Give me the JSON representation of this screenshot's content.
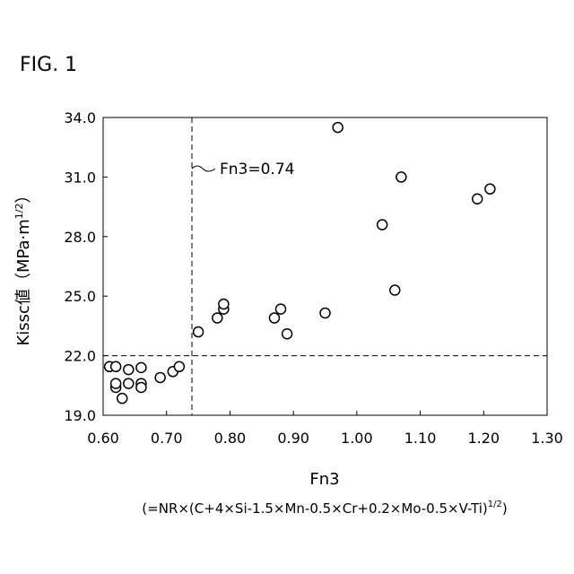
{
  "figure_label": "FIG. 1",
  "chart_data": {
    "type": "scatter",
    "xlabel": "Fn3",
    "xlabel_sub_main": "(=NR×(C+4×Si-1.5×Mn-0.5×Cr+0.2×Mo-0.5×V-Ti)",
    "xlabel_sub_sup": "1/2",
    "xlabel_sub_close": ")",
    "ylabel_main": "Kissc値（MPa·m",
    "ylabel_sup": "1/2",
    "ylabel_close": "）",
    "xlim": [
      0.6,
      1.3
    ],
    "ylim": [
      19.0,
      34.0
    ],
    "x_ticks": [
      "0.60",
      "0.70",
      "0.80",
      "0.90",
      "1.00",
      "1.10",
      "1.20",
      "1.30"
    ],
    "y_ticks": [
      "19.0",
      "22.0",
      "25.0",
      "28.0",
      "31.0",
      "34.0"
    ],
    "annotation": "Fn3=0.74",
    "reference_lines": {
      "x": 0.74,
      "y": 22.0
    },
    "points": [
      {
        "x": 0.61,
        "y": 21.45
      },
      {
        "x": 0.62,
        "y": 21.45
      },
      {
        "x": 0.62,
        "y": 20.4
      },
      {
        "x": 0.62,
        "y": 20.6
      },
      {
        "x": 0.63,
        "y": 19.85
      },
      {
        "x": 0.64,
        "y": 21.3
      },
      {
        "x": 0.64,
        "y": 20.6
      },
      {
        "x": 0.66,
        "y": 21.4
      },
      {
        "x": 0.66,
        "y": 20.6
      },
      {
        "x": 0.66,
        "y": 20.4
      },
      {
        "x": 0.69,
        "y": 20.9
      },
      {
        "x": 0.71,
        "y": 21.2
      },
      {
        "x": 0.72,
        "y": 21.45
      },
      {
        "x": 0.75,
        "y": 23.2
      },
      {
        "x": 0.78,
        "y": 23.9
      },
      {
        "x": 0.79,
        "y": 24.35
      },
      {
        "x": 0.79,
        "y": 24.6
      },
      {
        "x": 0.87,
        "y": 23.9
      },
      {
        "x": 0.88,
        "y": 24.35
      },
      {
        "x": 0.89,
        "y": 23.1
      },
      {
        "x": 0.95,
        "y": 24.15
      },
      {
        "x": 0.97,
        "y": 33.5
      },
      {
        "x": 1.04,
        "y": 28.6
      },
      {
        "x": 1.06,
        "y": 25.3
      },
      {
        "x": 1.07,
        "y": 31.0
      },
      {
        "x": 1.19,
        "y": 29.9
      },
      {
        "x": 1.21,
        "y": 30.4
      }
    ]
  }
}
